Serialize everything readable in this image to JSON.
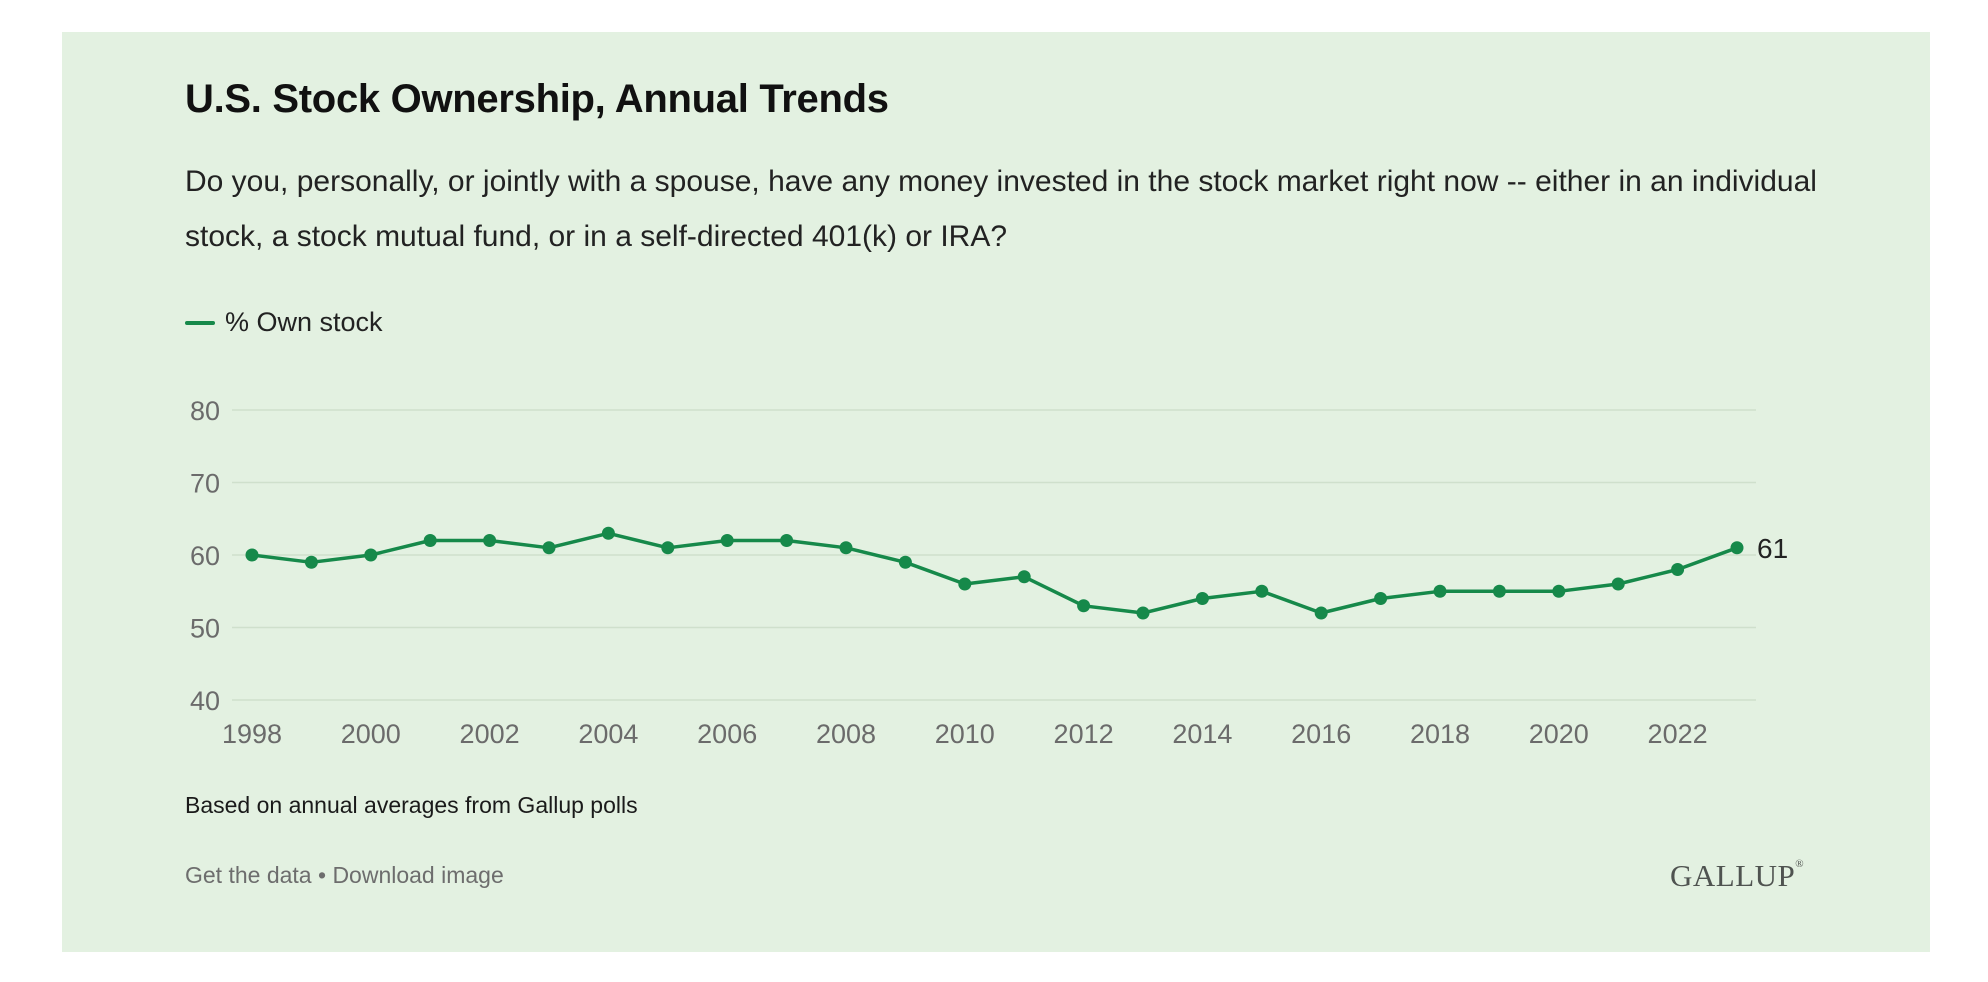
{
  "title": "U.S. Stock Ownership, Annual Trends",
  "subtitle": "Do you, personally, or jointly with a spouse, have any money invested in the stock market right now -- either in an individual stock, a stock mutual fund, or in a self-directed 401(k) or IRA?",
  "footnote": "Based on annual averages from Gallup polls",
  "links": {
    "get_data": "Get the data",
    "separator": " • ",
    "download": "Download image"
  },
  "logo": {
    "text": "GALLUP",
    "mark": "®"
  },
  "colors": {
    "background": "#e3f1e1",
    "series": "#16894a",
    "grid": "#cfe0cc",
    "tick": "#6b6b6b"
  },
  "chart_data": {
    "type": "line",
    "x": [
      1998,
      1999,
      2000,
      2001,
      2002,
      2003,
      2004,
      2005,
      2006,
      2007,
      2008,
      2009,
      2010,
      2011,
      2012,
      2013,
      2014,
      2015,
      2016,
      2017,
      2018,
      2019,
      2020,
      2021,
      2022,
      2023
    ],
    "xticks": [
      "1998",
      "2000",
      "2002",
      "2004",
      "2006",
      "2008",
      "2010",
      "2012",
      "2014",
      "2016",
      "2018",
      "2020",
      "2022"
    ],
    "yticks": [
      "40",
      "50",
      "60",
      "70",
      "80"
    ],
    "ylim": [
      40,
      80
    ],
    "series": [
      {
        "name": "% Own stock",
        "values": [
          60,
          59,
          60,
          62,
          62,
          61,
          63,
          61,
          62,
          62,
          61,
          59,
          56,
          57,
          53,
          52,
          54,
          55,
          52,
          54,
          55,
          55,
          55,
          56,
          58,
          61
        ]
      }
    ],
    "end_label": "61",
    "grid": true,
    "legend": "top-left"
  }
}
